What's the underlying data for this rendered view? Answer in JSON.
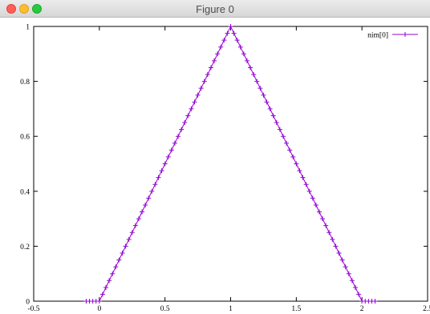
{
  "window": {
    "title": "Figure 0",
    "buttons": [
      "close",
      "minimize",
      "maximize"
    ]
  },
  "chart_data": {
    "type": "line",
    "title": "",
    "xlabel": "",
    "ylabel": "",
    "xlim": [
      -0.5,
      2.5
    ],
    "ylim": [
      0,
      1
    ],
    "xticks": [
      "-0.5",
      "0",
      "0.5",
      "1",
      "1.5",
      "2",
      "2.5"
    ],
    "yticks": [
      "0",
      "0.2",
      "0.4",
      "0.6",
      "0.8",
      "1"
    ],
    "grid": false,
    "legend_position": "top-right",
    "series": [
      {
        "name": "nim[0]",
        "color": "#9400d3",
        "marker": "plus",
        "x": [
          -0.1,
          -0.075,
          -0.05,
          -0.025,
          0,
          0.025,
          0.05,
          0.075,
          0.1,
          0.125,
          0.15,
          0.175,
          0.2,
          0.225,
          0.25,
          0.275,
          0.3,
          0.325,
          0.35,
          0.375,
          0.4,
          0.425,
          0.45,
          0.475,
          0.5,
          0.525,
          0.55,
          0.575,
          0.6,
          0.625,
          0.65,
          0.675,
          0.7,
          0.725,
          0.75,
          0.775,
          0.8,
          0.825,
          0.85,
          0.875,
          0.9,
          0.925,
          0.95,
          0.975,
          1,
          1.025,
          1.05,
          1.075,
          1.1,
          1.125,
          1.15,
          1.175,
          1.2,
          1.225,
          1.25,
          1.275,
          1.3,
          1.325,
          1.35,
          1.375,
          1.4,
          1.425,
          1.45,
          1.475,
          1.5,
          1.525,
          1.55,
          1.575,
          1.6,
          1.625,
          1.65,
          1.675,
          1.7,
          1.725,
          1.75,
          1.775,
          1.8,
          1.825,
          1.85,
          1.875,
          1.9,
          1.925,
          1.95,
          1.975,
          2,
          2.025,
          2.05,
          2.075,
          2.1
        ],
        "y": [
          0,
          0,
          0,
          0,
          0,
          0.025,
          0.05,
          0.075,
          0.1,
          0.125,
          0.15,
          0.175,
          0.2,
          0.225,
          0.25,
          0.275,
          0.3,
          0.325,
          0.35,
          0.375,
          0.4,
          0.425,
          0.45,
          0.475,
          0.5,
          0.525,
          0.55,
          0.575,
          0.6,
          0.625,
          0.65,
          0.675,
          0.7,
          0.725,
          0.75,
          0.775,
          0.8,
          0.825,
          0.85,
          0.875,
          0.9,
          0.925,
          0.95,
          0.975,
          1,
          0.975,
          0.95,
          0.925,
          0.9,
          0.875,
          0.85,
          0.825,
          0.8,
          0.775,
          0.75,
          0.725,
          0.7,
          0.675,
          0.65,
          0.625,
          0.6,
          0.575,
          0.55,
          0.525,
          0.5,
          0.475,
          0.45,
          0.425,
          0.4,
          0.375,
          0.35,
          0.325,
          0.3,
          0.275,
          0.25,
          0.225,
          0.2,
          0.175,
          0.15,
          0.125,
          0.1,
          0.075,
          0.05,
          0.025,
          0,
          0,
          0,
          0,
          0
        ]
      }
    ]
  }
}
